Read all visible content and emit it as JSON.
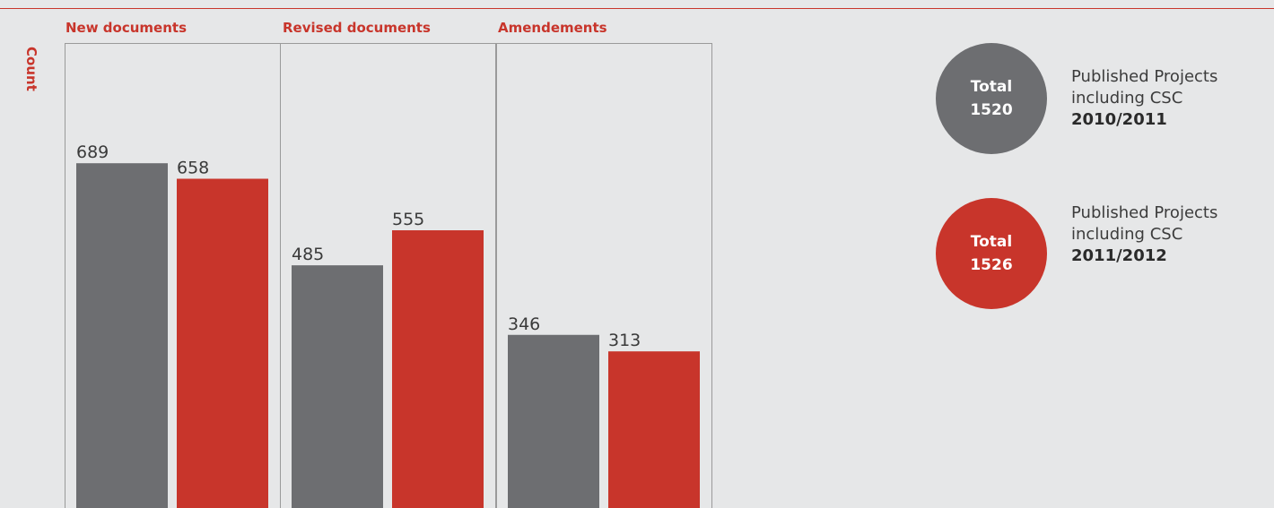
{
  "colors": {
    "series_a": "#6d6e71",
    "series_b": "#c8352b",
    "accent": "#c8352b",
    "background": "#e6e7e8",
    "panel_border": "#9a9a9a"
  },
  "chart_data": {
    "type": "bar",
    "title": "",
    "xlabel": "",
    "ylabel": "Count",
    "ylim": [
      0,
      1000
    ],
    "categories": [
      "New documents",
      "Revised documents",
      "Amendements"
    ],
    "series": [
      {
        "values": [
          689,
          485,
          346
        ]
      },
      {
        "values": [
          658,
          555,
          313
        ]
      }
    ],
    "grid": false,
    "legend_position": "right"
  },
  "legend": [
    {
      "circle_line1": "Total",
      "circle_line2": "1520",
      "line1": "Published Projects",
      "line2": "including CSC",
      "year": "2010/2011"
    },
    {
      "circle_line1": "Total",
      "circle_line2": "1526",
      "line1": "Published Projects",
      "line2": "including CSC",
      "year": "2011/2012"
    }
  ]
}
